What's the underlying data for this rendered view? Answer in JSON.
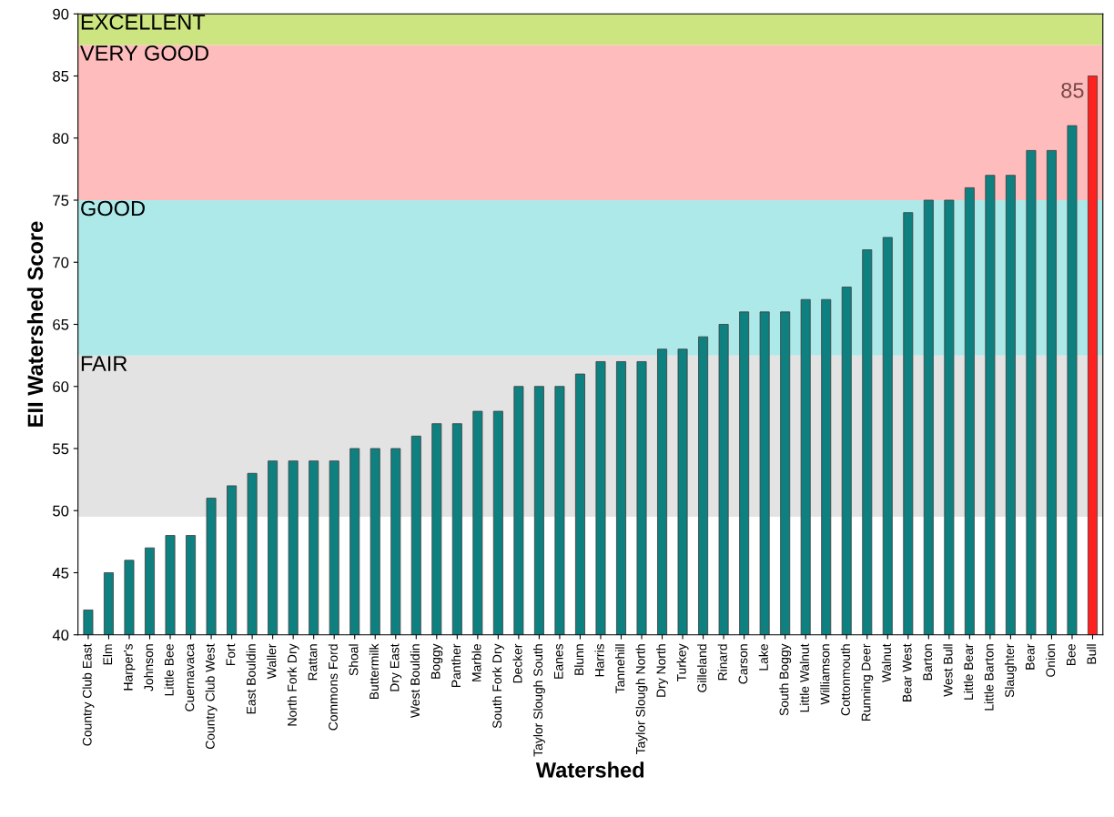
{
  "chart_data": {
    "type": "bar",
    "xlabel": "Watershed",
    "ylabel": "EII Watershed Score",
    "categories": [
      "Country Club East",
      "Elm",
      "Harper's",
      "Johnson",
      "Little Bee",
      "Cuernavaca",
      "Country Club West",
      "Fort",
      "East Bouldin",
      "Waller",
      "North Fork Dry",
      "Rattan",
      "Commons Ford",
      "Shoal",
      "Buttermilk",
      "Dry East",
      "West Bouldin",
      "Boggy",
      "Panther",
      "Marble",
      "South Fork Dry",
      "Decker",
      "Taylor Slough South",
      "Eanes",
      "Blunn",
      "Harris",
      "Tannehill",
      "Taylor Slough North",
      "Dry North",
      "Turkey",
      "Gilleland",
      "Rinard",
      "Carson",
      "Lake",
      "South Boggy",
      "Little Walnut",
      "Williamson",
      "Cottonmouth",
      "Running Deer",
      "Walnut",
      "Bear West",
      "Barton",
      "West Bull",
      "Little Bear",
      "Little Barton",
      "Slaughter",
      "Bear",
      "Onion",
      "Bee",
      "Bull"
    ],
    "values": [
      42,
      45,
      46,
      47,
      48,
      48,
      51,
      52,
      53,
      54,
      54,
      54,
      54,
      55,
      55,
      55,
      56,
      57,
      57,
      58,
      58,
      60,
      60,
      60,
      61,
      62,
      62,
      62,
      63,
      63,
      64,
      65,
      66,
      66,
      66,
      67,
      67,
      68,
      71,
      72,
      74,
      75,
      75,
      76,
      77,
      77,
      79,
      79,
      81,
      85
    ],
    "colors": [
      "#0e8080",
      "#0e8080",
      "#0e8080",
      "#0e8080",
      "#0e8080",
      "#0e8080",
      "#0e8080",
      "#0e8080",
      "#0e8080",
      "#0e8080",
      "#0e8080",
      "#0e8080",
      "#0e8080",
      "#0e8080",
      "#0e8080",
      "#0e8080",
      "#0e8080",
      "#0e8080",
      "#0e8080",
      "#0e8080",
      "#0e8080",
      "#0e8080",
      "#0e8080",
      "#0e8080",
      "#0e8080",
      "#0e8080",
      "#0e8080",
      "#0e8080",
      "#0e8080",
      "#0e8080",
      "#0e8080",
      "#0e8080",
      "#0e8080",
      "#0e8080",
      "#0e8080",
      "#0e8080",
      "#0e8080",
      "#0e8080",
      "#0e8080",
      "#0e8080",
      "#0e8080",
      "#0e8080",
      "#0e8080",
      "#0e8080",
      "#0e8080",
      "#0e8080",
      "#0e8080",
      "#0e8080",
      "#0e8080",
      "#ff2020"
    ],
    "value_labels": [
      null,
      null,
      null,
      null,
      null,
      null,
      null,
      null,
      null,
      null,
      null,
      null,
      null,
      null,
      null,
      null,
      null,
      null,
      null,
      null,
      null,
      null,
      null,
      null,
      null,
      null,
      null,
      null,
      null,
      null,
      null,
      null,
      null,
      null,
      null,
      null,
      null,
      null,
      null,
      null,
      null,
      null,
      null,
      null,
      null,
      null,
      null,
      null,
      null,
      "85"
    ],
    "ylim": [
      40,
      90
    ],
    "yticks": [
      40,
      45,
      50,
      55,
      60,
      65,
      70,
      75,
      80,
      85,
      90
    ],
    "bands": [
      {
        "axis": "y",
        "from": 49.5,
        "to": 62.5,
        "label": "FAIR",
        "color": "#e3e3e3"
      },
      {
        "axis": "y",
        "from": 62.5,
        "to": 75,
        "label": "GOOD",
        "color": "#aee9e9"
      },
      {
        "axis": "y",
        "from": 75,
        "to": 87.5,
        "label": "VERY GOOD",
        "color": "#ffbcbc"
      },
      {
        "axis": "y",
        "from": 87.5,
        "to": 90,
        "label": "EXCELLENT",
        "color": "#cce580"
      }
    ],
    "grid": false,
    "legend": false
  }
}
